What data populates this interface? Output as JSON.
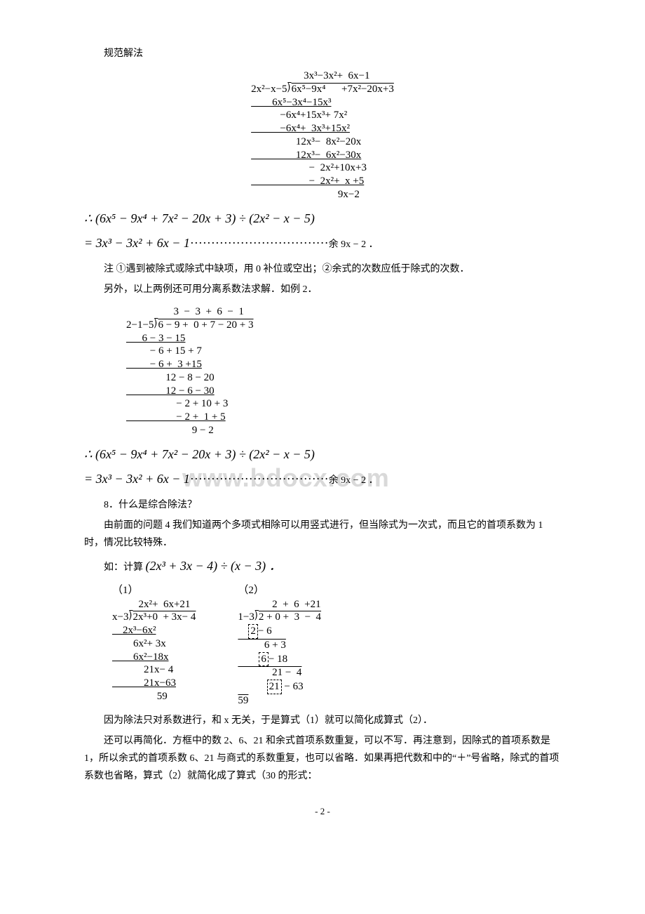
{
  "watermark": "www.bdocx.com",
  "heading1": "规范解法",
  "longdiv1": {
    "quotient": "                    3x³−3x²+  6x−1",
    "divisor": "2x²−x−5",
    "dividend": "6x⁵−9x⁴      +7x²−20x+3",
    "r1": "        6x⁵−3x⁴−15x³",
    "r2": "           −6x⁴+15x³+ 7x²",
    "r3": "           −6x⁴+  3x³+15x²",
    "r4": "                 12x³−  8x²−20x",
    "r5": "                 12x³−  6x²−30x",
    "r6": "                      −  2x²+10x+3",
    "r7": "                      −  2x²+  x +5",
    "r8": "                                 9x−2"
  },
  "eq1_line1": "∴    (6x⁵ − 9x⁴ + 7x² − 20x + 3) ÷ (2x² − x − 5)",
  "eq1_line2_prefix": "= 3x³ − 3x² + 6x − 1",
  "eq1_dots": "·································",
  "eq1_tail": "余 9x − 2 ．",
  "note1": "注    ①遇到被除式或除式中缺项，用 0 补位或空出；②余式的次数应低于除式的次数．",
  "note2": "另外，以上两例还可用分离系数法求解．如例 2．",
  "longdiv2": {
    "quotient": "                  3  −  3  +  6  −  1",
    "divisor": "2−1−5",
    "dividend": "6 − 9 +  0 + 7 − 20 + 3",
    "r1": "      6 − 3 − 15",
    "r2": "         − 6 + 15 + 7",
    "r3": "         − 6 +  3 +15",
    "r4": "               12 − 8 − 20",
    "r5": "               12 − 6 − 30",
    "r6": "                   − 2 + 10 + 3",
    "r7": "                   − 2 +  1 + 5",
    "r8": "                         9 − 2"
  },
  "eq2_line1": "∴    (6x⁵ − 9x⁴ + 7x² − 20x + 3) ÷ (2x² − x − 5)",
  "eq2_line2_prefix": "= 3x³ − 3x² + 6x − 1",
  "eq2_dots": "·································",
  "eq2_tail": "余 9x − 2 ．",
  "q8_title": "8．什么是综合除法？",
  "q8_p1": "由前面的问题 4 我们知道两个多项式相除可以用竖式进行，但当除式为一次式，而且它的首项系数为 1 时，情况比较特殊．",
  "q8_calc_label": "如：计算",
  "q8_calc_expr": "(2x³ + 3x − 4) ÷ (x − 3) ．",
  "col1_label": "（1）",
  "col2_label": "（2）",
  "longdiv3": {
    "quotient": "          2x²+  6x+21",
    "divisor": "x−3",
    "dividend": "2x³+0  + 3x− 4",
    "r1": "    2x³−6x²",
    "r2": "        6x²+ 3x",
    "r3": "        6x²−18x",
    "r4": "            21x− 4",
    "r5": "            21x−63",
    "r6": "                 59"
  },
  "longdiv4": {
    "quotient": "             2  +  6  +21",
    "divisor": "1−3",
    "dividend": "2 + 0 +  3  −  4",
    "remainder": "59"
  },
  "tail_p1": "因为除法只对系数进行，和 x 无关，于是算式（1）就可以简化成算式（2）．",
  "tail_p2": "还可以再简化．方框中的数 2、6、21 和余式首项系数重复，可以不写．再注意到，因除式的首项系数是 1，所以余式的首项系数 6、21 与商式的系数重复，也可以省略．如果再把代数和中的“＋”号省略，除式的首项系数也省略，算式（2）就简化成了算式（30 的形式：",
  "page_num": "- 2 -"
}
